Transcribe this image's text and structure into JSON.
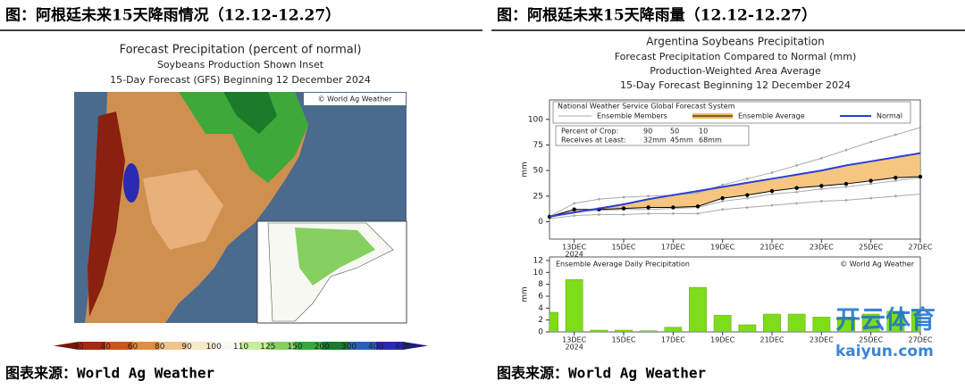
{
  "left": {
    "header": "图：阿根廷未来15天降雨情况（12.12-12.27）",
    "title": "Forecast Precipitation (percent of normal)",
    "subtitle": "Soybeans Production Shown Inset",
    "subtitle2": "15-Day Forecast (GFS) Beginning 12 December 2024",
    "credit": "© World Ag Weather",
    "colorbar": {
      "labels": [
        20,
        40,
        60,
        80,
        90,
        100,
        110,
        125,
        150,
        200,
        300,
        400,
        600
      ],
      "colors": [
        "#7a1408",
        "#a52a14",
        "#c9561f",
        "#e08e45",
        "#efc58a",
        "#f6e8c8",
        "#f8f8f2",
        "#c5ee9a",
        "#86d062",
        "#36a83a",
        "#177a2c",
        "#2a5fb8",
        "#2a2ab0",
        "#1a1a80"
      ]
    },
    "source": "图表来源：World Ag Weather"
  },
  "right": {
    "header": "图：阿根廷未来15天降雨量（12.12-12.27）",
    "source": "图表来源：World Ag Weather"
  },
  "watermark": {
    "brand": "开云体育",
    "url": "kaiyun.com"
  },
  "chart_data": [
    {
      "type": "line",
      "title": "Argentina Soybeans Precipitation",
      "subtitle": "Forecast Precipitation Compared to Normal (mm)",
      "subtitle2": "Production-Weighted Area Average",
      "subtitle3": "15-Day Forecast Beginning 12 December 2024",
      "model": "National Weather Service Global Forecast System",
      "crop_table": [
        [
          "Percent of Crop:",
          "90",
          "50",
          "10"
        ],
        [
          "Receives at Least:",
          "32mm",
          "45mm",
          "68mm"
        ]
      ],
      "ylabel": "mm",
      "year_label": "2024",
      "x": [
        12,
        13,
        14,
        15,
        16,
        17,
        18,
        19,
        20,
        21,
        22,
        23,
        24,
        25,
        26,
        27
      ],
      "xlim": [
        12,
        27
      ],
      "xticks": [
        {
          "value": 13,
          "label": "13DEC"
        },
        {
          "value": 15,
          "label": "15DEC"
        },
        {
          "value": 17,
          "label": "17DEC"
        },
        {
          "value": 19,
          "label": "19DEC"
        },
        {
          "value": 21,
          "label": "21DEC"
        },
        {
          "value": 23,
          "label": "23DEC"
        },
        {
          "value": 25,
          "label": "25DEC"
        },
        {
          "value": 27,
          "label": "27DEC"
        }
      ],
      "ylim": [
        -17,
        119
      ],
      "yticks": [
        0,
        25,
        50,
        75,
        100
      ],
      "fill_between": {
        "series": [
          1,
          2
        ],
        "color": "#f4b860"
      },
      "series": [
        {
          "name": "Ensemble Members",
          "color": "#aaaaaa",
          "values": [
            5,
            18,
            22,
            24,
            25,
            26,
            28,
            36,
            42,
            48,
            55,
            62,
            70,
            78,
            85,
            92
          ],
          "members": [
            [
              4,
              10,
              11,
              12,
              12,
              13,
              14,
              20,
              23,
              27,
              29,
              32,
              34,
              37,
              40,
              43
            ],
            [
              3,
              6,
              7,
              7,
              8,
              8,
              8,
              12,
              14,
              16,
              18,
              20,
              21,
              23,
              25,
              27
            ]
          ]
        },
        {
          "name": "Ensemble Average",
          "color": "#000000",
          "values": [
            5,
            12,
            12,
            13,
            14,
            14,
            15,
            23,
            26,
            30,
            33,
            35,
            37,
            40,
            43,
            44
          ]
        },
        {
          "name": "Normal",
          "color": "#2a3fd6",
          "values": [
            5,
            9,
            13,
            17,
            22,
            26,
            30,
            34,
            38,
            42,
            46,
            50,
            55,
            59,
            63,
            67
          ]
        }
      ]
    },
    {
      "type": "bar",
      "title": "Ensemble Average Daily Precipitation",
      "credit": "© World Ag Weather",
      "ylabel": "mm",
      "year_label": "2024",
      "x": [
        12,
        13,
        14,
        15,
        16,
        17,
        18,
        19,
        20,
        21,
        22,
        23,
        24,
        25,
        26,
        27
      ],
      "values": [
        3.3,
        8.8,
        0.3,
        0.3,
        0.2,
        0.8,
        7.5,
        2.8,
        1.2,
        3,
        3,
        2.5,
        2.5,
        3,
        3.5,
        3.8
      ],
      "color": "#7fdc1a",
      "xlim": [
        12,
        27
      ],
      "xticks": [
        {
          "value": 13,
          "label": "13DEC"
        },
        {
          "value": 15,
          "label": "15DEC"
        },
        {
          "value": 17,
          "label": "17DEC"
        },
        {
          "value": 19,
          "label": "19DEC"
        },
        {
          "value": 21,
          "label": "21DEC"
        },
        {
          "value": 23,
          "label": "23DEC"
        },
        {
          "value": 25,
          "label": "25DEC"
        },
        {
          "value": 27,
          "label": "27DEC"
        }
      ],
      "ylim": [
        0,
        12.6
      ],
      "yticks": [
        0,
        2,
        4,
        6,
        8,
        10,
        12
      ]
    }
  ]
}
